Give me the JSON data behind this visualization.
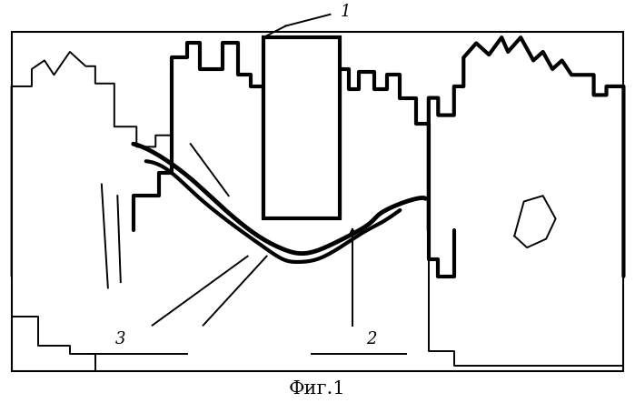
{
  "title": "Фиг.1",
  "title_fontsize": 15,
  "background_color": "#ffffff",
  "line_color": "#000000",
  "thick_lw": 3.0,
  "thin_lw": 1.4,
  "label_1": "1",
  "label_2": "2",
  "label_3": "3",
  "figsize": [
    6.99,
    4.43
  ],
  "dpi": 100
}
